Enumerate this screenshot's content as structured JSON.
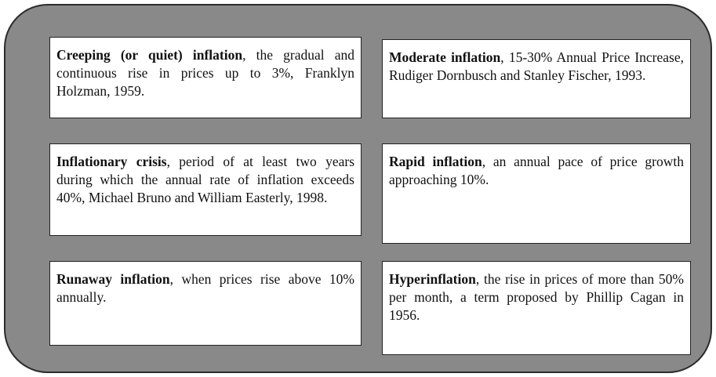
{
  "items": [
    {
      "term": "Creeping (or quiet) inflation",
      "text": ", the gradual and continuous rise in prices up to 3%, Franklyn Holzman, 1959."
    },
    {
      "term": "Moderate inflation",
      "text": ", 15-30% Annual Price Increase, Rudiger Dornbusch and Stanley Fischer, 1993."
    },
    {
      "term": "Inflationary crisis",
      "text": ", period of at least two years during which the annual rate of inflation exceeds 40%, Michael Bruno and William Easterly, 1998."
    },
    {
      "term": "Rapid inflation",
      "text": ", an annual pace of price growth approaching 10%."
    },
    {
      "term": "Runaway inflation",
      "text": ", when prices rise above 10% annually."
    },
    {
      "term": "Hyperinflation",
      "text": ", the rise in prices of more than 50% per month, a term proposed by Phillip Cagan in 1956."
    }
  ]
}
